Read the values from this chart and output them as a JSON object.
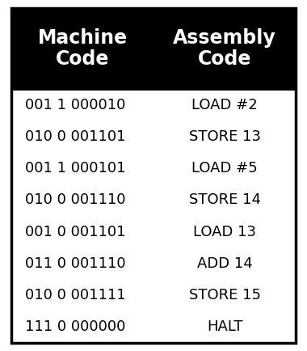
{
  "header_col1": "Machine\nCode",
  "header_col2": "Assembly\nCode",
  "machine_code": [
    "001 1 000010",
    "010 0 001101",
    "001 1 000101",
    "010 0 001110",
    "001 0 001101",
    "011 0 001110",
    "010 0 001111",
    "111 0 000000"
  ],
  "assembly_code": [
    "LOAD #2",
    "STORE 13",
    "LOAD #5",
    "STORE 14",
    "LOAD 13",
    "ADD 14",
    "STORE 15",
    "HALT"
  ],
  "header_bg": "#000000",
  "header_fg": "#ffffff",
  "body_bg": "#ffffff",
  "body_fg": "#000000",
  "border_color": "#000000",
  "header_fontsize": 17,
  "body_fontsize": 13,
  "fig_width": 3.8,
  "fig_height": 4.34
}
